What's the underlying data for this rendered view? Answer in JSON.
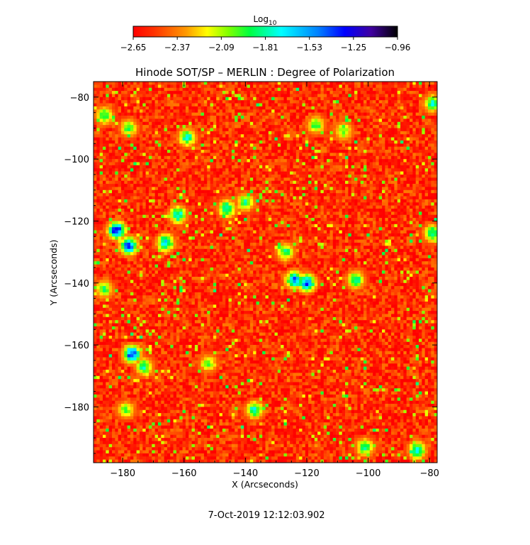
{
  "chart_data": {
    "type": "heatmap",
    "title": "Hinode SOT/SP – MERLIN : Degree of Polarization",
    "xlabel": "X (Arcseconds)",
    "ylabel": "Y (Arcseconds)",
    "xlim": [
      -189.5,
      -77.5
    ],
    "ylim": [
      -198,
      -75
    ],
    "x_ticks": [
      -180,
      -160,
      -140,
      -120,
      -100,
      -80
    ],
    "x_tick_labels": [
      "−180",
      "−160",
      "−140",
      "−120",
      "−100",
      "−80"
    ],
    "y_ticks": [
      -80,
      -100,
      -120,
      -140,
      -160,
      -180
    ],
    "y_tick_labels": [
      "−80",
      "−100",
      "−120",
      "−140",
      "−160",
      "−180"
    ],
    "colorbar": {
      "label_base": "Log",
      "label_sub": "10",
      "range": [
        -2.65,
        -0.96
      ],
      "tick_labels": [
        "−2.65",
        "−2.37",
        "−2.09",
        "−1.81",
        "−1.53",
        "−1.25",
        "−0.96"
      ],
      "colors": [
        "#ff0000",
        "#ff8c00",
        "#ffff00",
        "#00ff00",
        "#00ffff",
        "#0000ff",
        "#000000"
      ]
    },
    "background_level": -2.55,
    "features": [
      {
        "x": -182,
        "y": -123,
        "value": -1.15
      },
      {
        "x": -178,
        "y": -128,
        "value": -1.25
      },
      {
        "x": -166,
        "y": -127,
        "value": -1.55
      },
      {
        "x": -162,
        "y": -118,
        "value": -1.6
      },
      {
        "x": -159,
        "y": -93,
        "value": -1.7
      },
      {
        "x": -177,
        "y": -163,
        "value": -1.2
      },
      {
        "x": -173,
        "y": -167,
        "value": -1.75
      },
      {
        "x": -186,
        "y": -86,
        "value": -1.8
      },
      {
        "x": -178,
        "y": -90,
        "value": -1.9
      },
      {
        "x": -146,
        "y": -116,
        "value": -1.65
      },
      {
        "x": -140,
        "y": -114,
        "value": -1.8
      },
      {
        "x": -124,
        "y": -139,
        "value": -1.35
      },
      {
        "x": -120,
        "y": -140,
        "value": -1.3
      },
      {
        "x": -127,
        "y": -130,
        "value": -1.8
      },
      {
        "x": -104,
        "y": -139,
        "value": -1.75
      },
      {
        "x": -117,
        "y": -89,
        "value": -1.85
      },
      {
        "x": -108,
        "y": -91,
        "value": -1.9
      },
      {
        "x": -137,
        "y": -181,
        "value": -1.7
      },
      {
        "x": -101,
        "y": -193,
        "value": -1.75
      },
      {
        "x": -84,
        "y": -194,
        "value": -1.6
      },
      {
        "x": -79,
        "y": -124,
        "value": -1.7
      },
      {
        "x": -79,
        "y": -82,
        "value": -1.75
      },
      {
        "x": -186,
        "y": -142,
        "value": -1.85
      },
      {
        "x": -152,
        "y": -166,
        "value": -1.95
      },
      {
        "x": -179,
        "y": -181,
        "value": -1.95
      }
    ]
  },
  "footer": {
    "timestamp": "7-Oct-2019 12:12:03.902"
  }
}
